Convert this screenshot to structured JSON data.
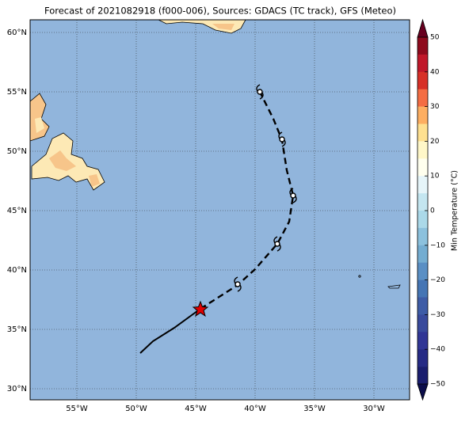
{
  "title": "Forecast of 2021082918 (f000-006), Sources: GDACS (TC track), GFS (Meteo)",
  "lat_labels": [
    "60°N",
    "55°N",
    "50°N",
    "45°N",
    "40°N",
    "35°N",
    "30°N"
  ],
  "lon_labels": [
    "55°W",
    "50°W",
    "45°W",
    "40°W",
    "35°W",
    "30°W"
  ],
  "colorbar": {
    "label": "Min Temperature (°C)",
    "ticks": [
      "50",
      "40",
      "30",
      "20",
      "10",
      "0",
      "−10",
      "−20",
      "−30",
      "−40",
      "−50"
    ]
  }
}
